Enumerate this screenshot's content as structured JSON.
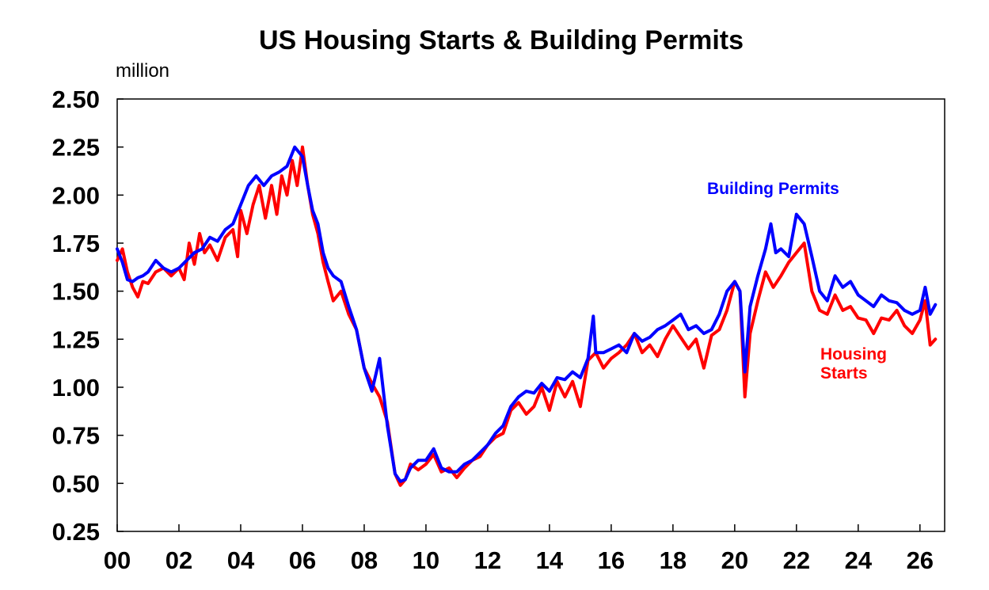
{
  "chart_data": {
    "type": "line",
    "title": "US Housing Starts & Building Permits",
    "unit_label": "million",
    "ylim": [
      0.25,
      2.5
    ],
    "xlim": [
      2000,
      2026.8
    ],
    "yticks": [
      "2.50",
      "2.25",
      "2.00",
      "1.75",
      "1.50",
      "1.25",
      "1.00",
      "0.75",
      "0.50",
      "0.25"
    ],
    "ytick_values": [
      2.5,
      2.25,
      2.0,
      1.75,
      1.5,
      1.25,
      1.0,
      0.75,
      0.5,
      0.25
    ],
    "xticks": [
      "00",
      "02",
      "04",
      "06",
      "08",
      "10",
      "12",
      "14",
      "16",
      "18",
      "20",
      "22",
      "24",
      "26"
    ],
    "xtick_values": [
      2000,
      2002,
      2004,
      2006,
      2008,
      2010,
      2012,
      2014,
      2016,
      2018,
      2020,
      2022,
      2024,
      2026
    ],
    "grid": false,
    "annotations": [
      {
        "text": "Building Permits",
        "series": "Building Permits"
      },
      {
        "text": "Housing",
        "series": "Housing Starts"
      },
      {
        "text": "Starts",
        "series": "Housing Starts"
      }
    ],
    "series": [
      {
        "name": "Housing Starts",
        "color": "#ff0000",
        "points": [
          [
            2000.0,
            1.66
          ],
          [
            2000.17,
            1.72
          ],
          [
            2000.33,
            1.6
          ],
          [
            2000.5,
            1.52
          ],
          [
            2000.67,
            1.47
          ],
          [
            2000.83,
            1.55
          ],
          [
            2001.0,
            1.54
          ],
          [
            2001.25,
            1.6
          ],
          [
            2001.5,
            1.62
          ],
          [
            2001.75,
            1.58
          ],
          [
            2002.0,
            1.62
          ],
          [
            2002.17,
            1.56
          ],
          [
            2002.33,
            1.75
          ],
          [
            2002.5,
            1.64
          ],
          [
            2002.67,
            1.8
          ],
          [
            2002.83,
            1.7
          ],
          [
            2003.0,
            1.74
          ],
          [
            2003.25,
            1.66
          ],
          [
            2003.5,
            1.78
          ],
          [
            2003.75,
            1.82
          ],
          [
            2003.9,
            1.68
          ],
          [
            2004.0,
            1.92
          ],
          [
            2004.2,
            1.8
          ],
          [
            2004.4,
            1.95
          ],
          [
            2004.6,
            2.05
          ],
          [
            2004.8,
            1.88
          ],
          [
            2005.0,
            2.05
          ],
          [
            2005.17,
            1.9
          ],
          [
            2005.33,
            2.1
          ],
          [
            2005.5,
            2.0
          ],
          [
            2005.67,
            2.18
          ],
          [
            2005.83,
            2.05
          ],
          [
            2006.0,
            2.25
          ],
          [
            2006.17,
            2.05
          ],
          [
            2006.33,
            1.9
          ],
          [
            2006.5,
            1.8
          ],
          [
            2006.67,
            1.65
          ],
          [
            2006.83,
            1.55
          ],
          [
            2007.0,
            1.45
          ],
          [
            2007.25,
            1.5
          ],
          [
            2007.5,
            1.38
          ],
          [
            2007.75,
            1.3
          ],
          [
            2008.0,
            1.1
          ],
          [
            2008.25,
            1.02
          ],
          [
            2008.5,
            0.95
          ],
          [
            2008.75,
            0.82
          ],
          [
            2009.0,
            0.55
          ],
          [
            2009.17,
            0.49
          ],
          [
            2009.33,
            0.52
          ],
          [
            2009.5,
            0.6
          ],
          [
            2009.75,
            0.57
          ],
          [
            2010.0,
            0.6
          ],
          [
            2010.25,
            0.65
          ],
          [
            2010.5,
            0.56
          ],
          [
            2010.75,
            0.58
          ],
          [
            2011.0,
            0.53
          ],
          [
            2011.25,
            0.58
          ],
          [
            2011.5,
            0.62
          ],
          [
            2011.75,
            0.64
          ],
          [
            2012.0,
            0.7
          ],
          [
            2012.25,
            0.74
          ],
          [
            2012.5,
            0.76
          ],
          [
            2012.75,
            0.88
          ],
          [
            2013.0,
            0.92
          ],
          [
            2013.25,
            0.86
          ],
          [
            2013.5,
            0.9
          ],
          [
            2013.75,
            1.0
          ],
          [
            2014.0,
            0.88
          ],
          [
            2014.25,
            1.03
          ],
          [
            2014.5,
            0.95
          ],
          [
            2014.75,
            1.03
          ],
          [
            2015.0,
            0.9
          ],
          [
            2015.25,
            1.14
          ],
          [
            2015.5,
            1.18
          ],
          [
            2015.75,
            1.1
          ],
          [
            2016.0,
            1.15
          ],
          [
            2016.25,
            1.18
          ],
          [
            2016.5,
            1.22
          ],
          [
            2016.75,
            1.28
          ],
          [
            2017.0,
            1.18
          ],
          [
            2017.25,
            1.22
          ],
          [
            2017.5,
            1.16
          ],
          [
            2017.75,
            1.25
          ],
          [
            2018.0,
            1.32
          ],
          [
            2018.25,
            1.26
          ],
          [
            2018.5,
            1.2
          ],
          [
            2018.75,
            1.25
          ],
          [
            2019.0,
            1.1
          ],
          [
            2019.25,
            1.27
          ],
          [
            2019.5,
            1.3
          ],
          [
            2019.75,
            1.4
          ],
          [
            2020.0,
            1.55
          ],
          [
            2020.17,
            1.5
          ],
          [
            2020.33,
            0.95
          ],
          [
            2020.5,
            1.28
          ],
          [
            2020.75,
            1.45
          ],
          [
            2021.0,
            1.6
          ],
          [
            2021.25,
            1.52
          ],
          [
            2021.5,
            1.58
          ],
          [
            2021.75,
            1.65
          ],
          [
            2022.0,
            1.7
          ],
          [
            2022.25,
            1.75
          ],
          [
            2022.5,
            1.5
          ],
          [
            2022.75,
            1.4
          ],
          [
            2023.0,
            1.38
          ],
          [
            2023.25,
            1.48
          ],
          [
            2023.5,
            1.4
          ],
          [
            2023.75,
            1.42
          ],
          [
            2024.0,
            1.36
          ],
          [
            2024.25,
            1.35
          ],
          [
            2024.5,
            1.28
          ],
          [
            2024.75,
            1.36
          ],
          [
            2025.0,
            1.35
          ],
          [
            2025.25,
            1.4
          ],
          [
            2025.5,
            1.32
          ],
          [
            2025.75,
            1.28
          ],
          [
            2026.0,
            1.35
          ],
          [
            2026.17,
            1.45
          ],
          [
            2026.33,
            1.22
          ],
          [
            2026.5,
            1.25
          ]
        ]
      },
      {
        "name": "Building Permits",
        "color": "#0000ff",
        "points": [
          [
            2000.0,
            1.72
          ],
          [
            2000.17,
            1.65
          ],
          [
            2000.33,
            1.56
          ],
          [
            2000.5,
            1.55
          ],
          [
            2000.67,
            1.57
          ],
          [
            2000.83,
            1.58
          ],
          [
            2001.0,
            1.6
          ],
          [
            2001.25,
            1.66
          ],
          [
            2001.5,
            1.62
          ],
          [
            2001.75,
            1.6
          ],
          [
            2002.0,
            1.62
          ],
          [
            2002.25,
            1.66
          ],
          [
            2002.5,
            1.7
          ],
          [
            2002.75,
            1.72
          ],
          [
            2003.0,
            1.78
          ],
          [
            2003.25,
            1.76
          ],
          [
            2003.5,
            1.82
          ],
          [
            2003.75,
            1.85
          ],
          [
            2004.0,
            1.95
          ],
          [
            2004.25,
            2.05
          ],
          [
            2004.5,
            2.1
          ],
          [
            2004.75,
            2.05
          ],
          [
            2005.0,
            2.1
          ],
          [
            2005.25,
            2.12
          ],
          [
            2005.5,
            2.15
          ],
          [
            2005.75,
            2.25
          ],
          [
            2006.0,
            2.2
          ],
          [
            2006.17,
            2.05
          ],
          [
            2006.33,
            1.92
          ],
          [
            2006.5,
            1.85
          ],
          [
            2006.67,
            1.7
          ],
          [
            2006.83,
            1.62
          ],
          [
            2007.0,
            1.58
          ],
          [
            2007.25,
            1.55
          ],
          [
            2007.5,
            1.42
          ],
          [
            2007.75,
            1.3
          ],
          [
            2008.0,
            1.1
          ],
          [
            2008.25,
            0.98
          ],
          [
            2008.5,
            1.15
          ],
          [
            2008.75,
            0.8
          ],
          [
            2009.0,
            0.55
          ],
          [
            2009.17,
            0.51
          ],
          [
            2009.33,
            0.52
          ],
          [
            2009.5,
            0.58
          ],
          [
            2009.75,
            0.62
          ],
          [
            2010.0,
            0.62
          ],
          [
            2010.25,
            0.68
          ],
          [
            2010.5,
            0.58
          ],
          [
            2010.75,
            0.56
          ],
          [
            2011.0,
            0.56
          ],
          [
            2011.25,
            0.6
          ],
          [
            2011.5,
            0.62
          ],
          [
            2011.75,
            0.66
          ],
          [
            2012.0,
            0.7
          ],
          [
            2012.25,
            0.76
          ],
          [
            2012.5,
            0.8
          ],
          [
            2012.75,
            0.9
          ],
          [
            2013.0,
            0.95
          ],
          [
            2013.25,
            0.98
          ],
          [
            2013.5,
            0.97
          ],
          [
            2013.75,
            1.02
          ],
          [
            2014.0,
            0.98
          ],
          [
            2014.25,
            1.05
          ],
          [
            2014.5,
            1.04
          ],
          [
            2014.75,
            1.08
          ],
          [
            2015.0,
            1.05
          ],
          [
            2015.25,
            1.15
          ],
          [
            2015.42,
            1.37
          ],
          [
            2015.5,
            1.18
          ],
          [
            2015.75,
            1.18
          ],
          [
            2016.0,
            1.2
          ],
          [
            2016.25,
            1.22
          ],
          [
            2016.5,
            1.18
          ],
          [
            2016.75,
            1.28
          ],
          [
            2017.0,
            1.24
          ],
          [
            2017.25,
            1.26
          ],
          [
            2017.5,
            1.3
          ],
          [
            2017.75,
            1.32
          ],
          [
            2018.0,
            1.35
          ],
          [
            2018.25,
            1.38
          ],
          [
            2018.5,
            1.3
          ],
          [
            2018.75,
            1.32
          ],
          [
            2019.0,
            1.28
          ],
          [
            2019.25,
            1.3
          ],
          [
            2019.5,
            1.38
          ],
          [
            2019.75,
            1.5
          ],
          [
            2020.0,
            1.55
          ],
          [
            2020.17,
            1.5
          ],
          [
            2020.33,
            1.08
          ],
          [
            2020.5,
            1.42
          ],
          [
            2020.75,
            1.58
          ],
          [
            2021.0,
            1.72
          ],
          [
            2021.17,
            1.85
          ],
          [
            2021.33,
            1.7
          ],
          [
            2021.5,
            1.72
          ],
          [
            2021.75,
            1.68
          ],
          [
            2022.0,
            1.9
          ],
          [
            2022.25,
            1.85
          ],
          [
            2022.5,
            1.68
          ],
          [
            2022.75,
            1.5
          ],
          [
            2023.0,
            1.45
          ],
          [
            2023.25,
            1.58
          ],
          [
            2023.5,
            1.52
          ],
          [
            2023.75,
            1.55
          ],
          [
            2024.0,
            1.48
          ],
          [
            2024.25,
            1.45
          ],
          [
            2024.5,
            1.42
          ],
          [
            2024.75,
            1.48
          ],
          [
            2025.0,
            1.45
          ],
          [
            2025.25,
            1.44
          ],
          [
            2025.5,
            1.4
          ],
          [
            2025.75,
            1.38
          ],
          [
            2026.0,
            1.4
          ],
          [
            2026.17,
            1.52
          ],
          [
            2026.33,
            1.38
          ],
          [
            2026.5,
            1.43
          ]
        ]
      }
    ]
  }
}
